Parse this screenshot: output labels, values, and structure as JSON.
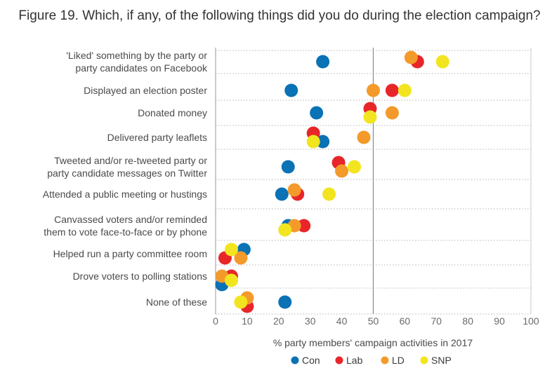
{
  "chart_data": {
    "type": "scatter",
    "title": "Figure 19. Which, if any, of the following things did you do during the election campaign?",
    "xlabel": "% party members' campaign activities in 2017",
    "xlim": [
      0,
      100
    ],
    "xticks": [
      0,
      10,
      20,
      30,
      40,
      50,
      60,
      70,
      80,
      90,
      100
    ],
    "reference_line": 50,
    "grid": "dotted horizontal",
    "legend_position": "bottom",
    "categories": [
      [
        "'Liked' something by the party or",
        "party candidates on Facebook"
      ],
      [
        "Displayed an election poster"
      ],
      [
        "Donated money"
      ],
      [
        "Delivered party leaflets"
      ],
      [
        "Tweeted and/or re-tweeted party or",
        "party candidate messages on Twitter"
      ],
      [
        "Attended a public meeting or hustings"
      ],
      [
        "Canvassed voters and/or reminded",
        "them to vote face-to-face or by phone"
      ],
      [
        "Helped run a party committee room"
      ],
      [
        "Drove voters to polling stations"
      ],
      [
        "None of these"
      ]
    ],
    "series": [
      {
        "name": "Con",
        "color": "#0a72b5",
        "values": [
          34,
          24,
          32,
          34,
          23,
          21,
          23,
          9,
          2,
          22
        ],
        "offsets": [
          0,
          0,
          0,
          0.5,
          0,
          0,
          0,
          -0.5,
          1,
          0
        ]
      },
      {
        "name": "Lab",
        "color": "#e8262a",
        "values": [
          64,
          56,
          49,
          31,
          39,
          26,
          28,
          3,
          5,
          10
        ],
        "offsets": [
          0,
          0,
          -0.5,
          -0.5,
          -0.5,
          0,
          0,
          0.5,
          0,
          0.5
        ]
      },
      {
        "name": "LD",
        "color": "#f39a2b",
        "values": [
          62,
          50,
          56,
          47,
          40,
          25,
          25,
          8,
          2,
          10
        ],
        "offsets": [
          -0.5,
          0,
          0,
          0,
          0.5,
          -0.5,
          0,
          0.5,
          0,
          -0.5
        ]
      },
      {
        "name": "SNP",
        "color": "#f2e51f",
        "values": [
          72,
          60,
          49,
          31,
          44,
          36,
          22,
          5,
          5,
          8
        ],
        "offsets": [
          0,
          0,
          0.5,
          0.5,
          0,
          0,
          0.5,
          -0.5,
          0.5,
          0
        ]
      }
    ]
  }
}
